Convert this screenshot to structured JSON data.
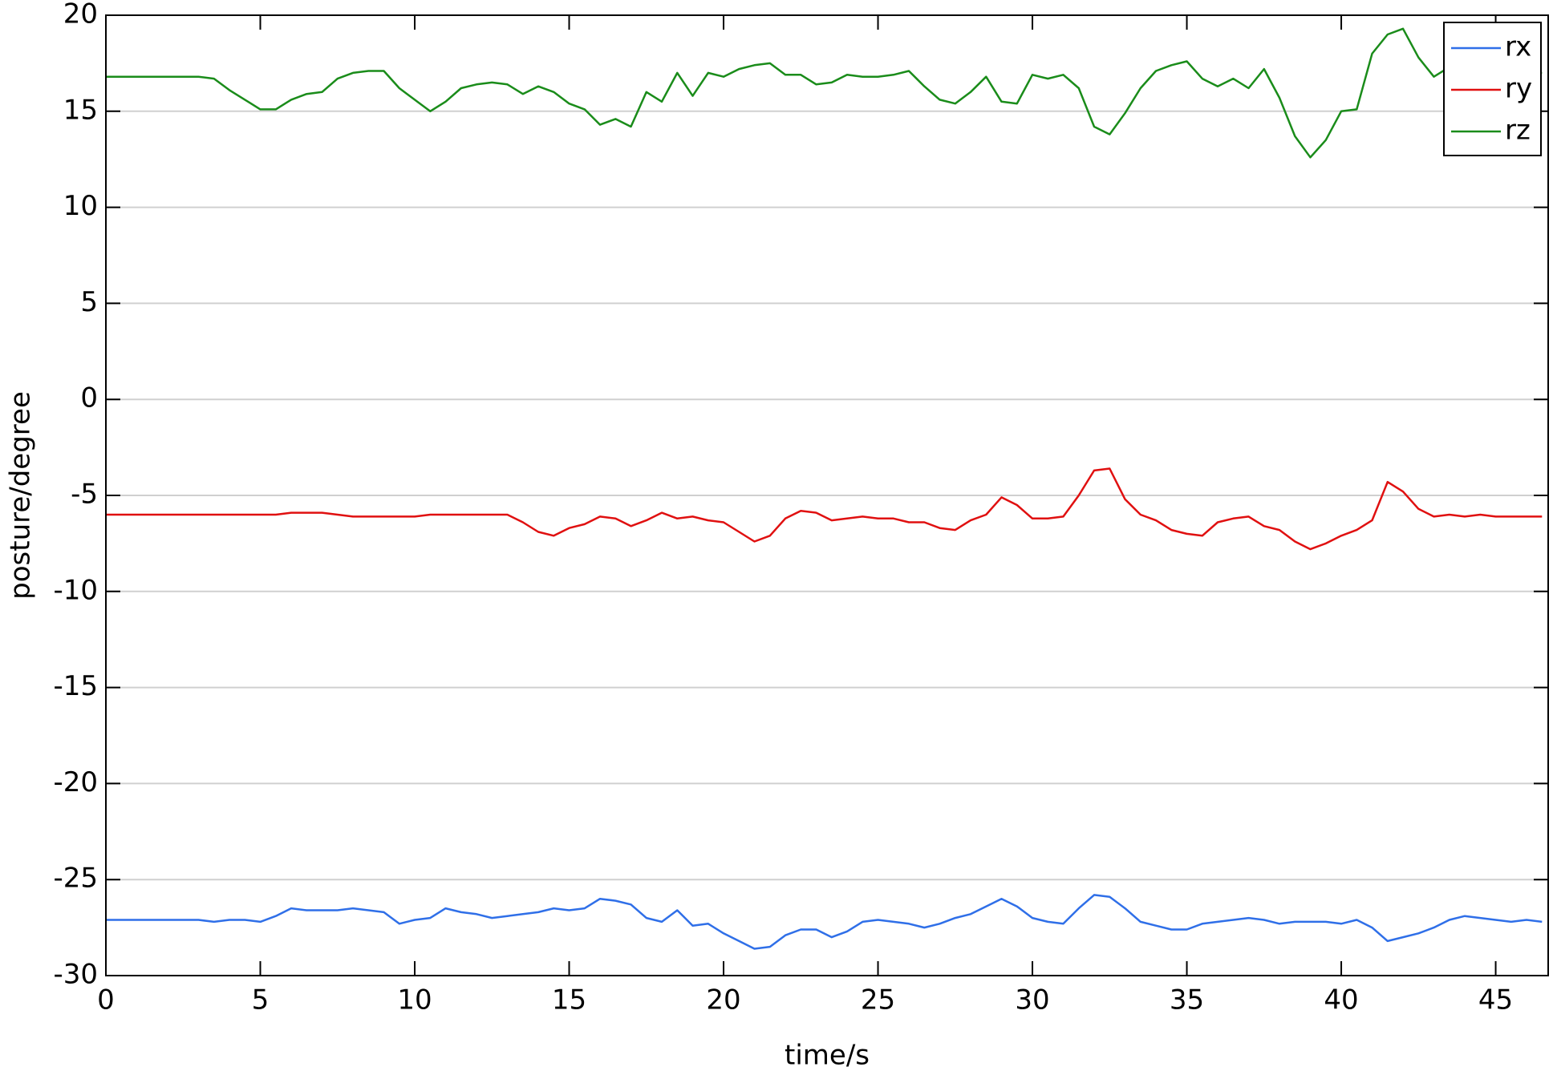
{
  "chart_data": {
    "type": "line",
    "x_label": "time/s",
    "y_label": "posture/degree",
    "xlim": [
      0,
      46.7
    ],
    "ylim": [
      -30,
      20
    ],
    "xticks": [
      0,
      5,
      10,
      15,
      20,
      25,
      30,
      35,
      40,
      45
    ],
    "yticks": [
      -30,
      -25,
      -20,
      -15,
      -10,
      -5,
      0,
      5,
      10,
      15,
      20
    ],
    "grid": true,
    "legend": "upper right",
    "x": [
      0,
      0.5,
      1,
      1.5,
      2,
      2.5,
      3,
      3.5,
      4,
      4.5,
      5,
      5.5,
      6,
      6.5,
      7,
      7.5,
      8,
      8.5,
      9,
      9.5,
      10,
      10.5,
      11,
      11.5,
      12,
      12.5,
      13,
      13.5,
      14,
      14.5,
      15,
      15.5,
      16,
      16.5,
      17,
      17.5,
      18,
      18.5,
      19,
      19.5,
      20,
      20.5,
      21,
      21.5,
      22,
      22.5,
      23,
      23.5,
      24,
      24.5,
      25,
      25.5,
      26,
      26.5,
      27,
      27.5,
      28,
      28.5,
      29,
      29.5,
      30,
      30.5,
      31,
      31.5,
      32,
      32.5,
      33,
      33.5,
      34,
      34.5,
      35,
      35.5,
      36,
      36.5,
      37,
      37.5,
      38,
      38.5,
      39,
      39.5,
      40,
      40.5,
      41,
      41.5,
      42,
      42.5,
      43,
      43.5,
      44,
      44.5,
      45,
      45.5,
      46,
      46.5
    ],
    "series": [
      {
        "name": "rx",
        "color": "#2f6fe8",
        "values": [
          -27.1,
          -27.1,
          -27.1,
          -27.1,
          -27.1,
          -27.1,
          -27.1,
          -27.2,
          -27.1,
          -27.1,
          -27.2,
          -26.9,
          -26.5,
          -26.6,
          -26.6,
          -26.6,
          -26.5,
          -26.6,
          -26.7,
          -27.3,
          -27.1,
          -27.0,
          -26.5,
          -26.7,
          -26.8,
          -27.0,
          -26.9,
          -26.8,
          -26.7,
          -26.5,
          -26.6,
          -26.5,
          -26.0,
          -26.1,
          -26.3,
          -27.0,
          -27.2,
          -26.6,
          -27.4,
          -27.3,
          -27.8,
          -28.2,
          -28.6,
          -28.5,
          -27.9,
          -27.6,
          -27.6,
          -28.0,
          -27.7,
          -27.2,
          -27.1,
          -27.2,
          -27.3,
          -27.5,
          -27.3,
          -27.0,
          -26.8,
          -26.4,
          -26.0,
          -26.4,
          -27.0,
          -27.2,
          -27.3,
          -26.5,
          -25.8,
          -25.9,
          -26.5,
          -27.2,
          -27.4,
          -27.6,
          -27.6,
          -27.3,
          -27.2,
          -27.1,
          -27.0,
          -27.1,
          -27.3,
          -27.2,
          -27.2,
          -27.2,
          -27.3,
          -27.1,
          -27.5,
          -28.2,
          -28.0,
          -27.8,
          -27.5,
          -27.1,
          -26.9,
          -27.0,
          -27.1,
          -27.2,
          -27.1,
          -27.2
        ]
      },
      {
        "name": "ry",
        "color": "#e01010",
        "values": [
          -6.0,
          -6.0,
          -6.0,
          -6.0,
          -6.0,
          -6.0,
          -6.0,
          -6.0,
          -6.0,
          -6.0,
          -6.0,
          -6.0,
          -5.9,
          -5.9,
          -5.9,
          -6.0,
          -6.1,
          -6.1,
          -6.1,
          -6.1,
          -6.1,
          -6.0,
          -6.0,
          -6.0,
          -6.0,
          -6.0,
          -6.0,
          -6.4,
          -6.9,
          -7.1,
          -6.7,
          -6.5,
          -6.1,
          -6.2,
          -6.6,
          -6.3,
          -5.9,
          -6.2,
          -6.1,
          -6.3,
          -6.4,
          -6.9,
          -7.4,
          -7.1,
          -6.2,
          -5.8,
          -5.9,
          -6.3,
          -6.2,
          -6.1,
          -6.2,
          -6.2,
          -6.4,
          -6.4,
          -6.7,
          -6.8,
          -6.3,
          -6.0,
          -5.1,
          -5.5,
          -6.2,
          -6.2,
          -6.1,
          -5.0,
          -3.7,
          -3.6,
          -5.2,
          -6.0,
          -6.3,
          -6.8,
          -7.0,
          -7.1,
          -6.4,
          -6.2,
          -6.1,
          -6.6,
          -6.8,
          -7.4,
          -7.8,
          -7.5,
          -7.1,
          -6.8,
          -6.3,
          -4.3,
          -4.8,
          -5.7,
          -6.1,
          -6.0,
          -6.1,
          -6.0,
          -6.1,
          -6.1,
          -6.1,
          -6.1
        ]
      },
      {
        "name": "rz",
        "color": "#1a8c1a",
        "values": [
          16.8,
          16.8,
          16.8,
          16.8,
          16.8,
          16.8,
          16.8,
          16.7,
          16.1,
          15.6,
          15.1,
          15.1,
          15.6,
          15.9,
          16.0,
          16.7,
          17.0,
          17.1,
          17.1,
          16.2,
          15.6,
          15.0,
          15.5,
          16.2,
          16.4,
          16.5,
          16.4,
          15.9,
          16.3,
          16.0,
          15.4,
          15.1,
          14.3,
          14.6,
          14.2,
          16.0,
          15.5,
          17.0,
          15.8,
          17.0,
          16.8,
          17.2,
          17.4,
          17.5,
          16.9,
          16.9,
          16.4,
          16.5,
          16.9,
          16.8,
          16.8,
          16.9,
          17.1,
          16.3,
          15.6,
          15.4,
          16.0,
          16.8,
          15.5,
          15.4,
          16.9,
          16.7,
          16.9,
          16.2,
          14.2,
          13.8,
          14.9,
          16.2,
          17.1,
          17.4,
          17.6,
          16.7,
          16.3,
          16.7,
          16.2,
          17.2,
          15.7,
          13.7,
          12.6,
          13.5,
          15.0,
          15.1,
          18.0,
          19.0,
          19.3,
          17.8,
          16.8,
          17.3,
          17.0,
          17.0,
          17.2,
          16.9,
          17.0,
          17.0
        ]
      }
    ]
  }
}
